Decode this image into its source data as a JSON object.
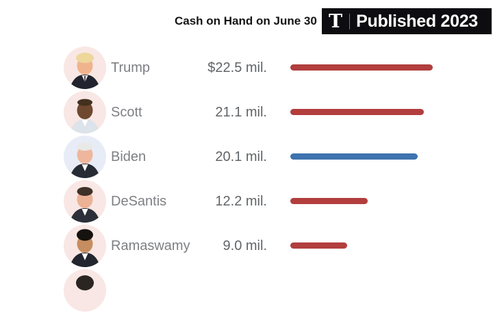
{
  "header": {
    "title": "Cash on Hand on June 30",
    "badge": {
      "logo_glyph": "T",
      "logo_icon": "nyt-times-logo",
      "separator": "|",
      "label": "Published 2023",
      "bg_color": "#0d0d11",
      "text_color": "#ffffff"
    }
  },
  "chart_data": {
    "type": "bar",
    "orientation": "horizontal",
    "title": "Cash on Hand on June 30",
    "unit": "millions of dollars",
    "categories": [
      "Trump",
      "Scott",
      "Biden",
      "DeSantis",
      "Ramaswamy"
    ],
    "values": [
      22.5,
      21.1,
      20.1,
      12.2,
      9.0
    ],
    "value_labels": [
      "$22.5 mil.",
      "21.1 mil.",
      "20.1 mil.",
      "12.2 mil.",
      "9.0 mil."
    ],
    "series": [
      {
        "name": "Cash on hand",
        "values": [
          22.5,
          21.1,
          20.1,
          12.2,
          9.0
        ]
      }
    ],
    "bar_colors": [
      "#b23e3e",
      "#b23e3e",
      "#3d73ae",
      "#b23e3e",
      "#b23e3e"
    ],
    "party_colors": {
      "republican": "#b23e3e",
      "democrat": "#3d73ae"
    },
    "xlim": [
      0,
      24
    ],
    "grid": false,
    "legend": false,
    "value_label_position": "left-of-bar",
    "partial_sixth_row_visible": true
  },
  "avatars": [
    {
      "name": "trump-photo",
      "bg": "#f8e7e4"
    },
    {
      "name": "scott-photo",
      "bg": "#f8e7e4"
    },
    {
      "name": "biden-photo",
      "bg": "#e8ecf7"
    },
    {
      "name": "desantis-photo",
      "bg": "#f8e7e4"
    },
    {
      "name": "ramaswamy-photo",
      "bg": "#f8e7e4"
    },
    {
      "name": "partial-sixth-photo",
      "bg": "#f8e7e4"
    }
  ]
}
